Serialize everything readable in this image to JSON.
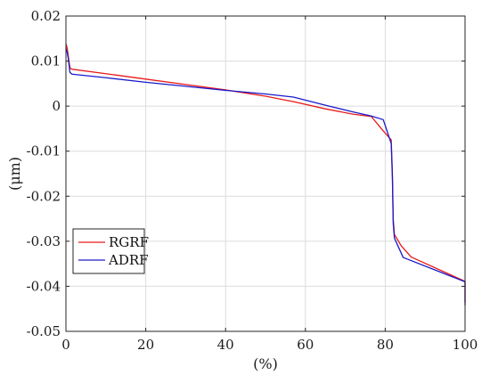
{
  "chart_data": {
    "type": "line",
    "xlabel": "(%)",
    "ylabel": "(μm)",
    "xlim": [
      0,
      100
    ],
    "ylim": [
      -0.05,
      0.02
    ],
    "xticks": [
      0,
      20,
      40,
      60,
      80,
      100
    ],
    "yticks": [
      0.02,
      0.01,
      0,
      -0.01,
      -0.02,
      -0.03,
      -0.04,
      -0.05
    ],
    "xtick_labels": [
      "0",
      "20",
      "40",
      "60",
      "80",
      "100"
    ],
    "ytick_labels": [
      "0.02",
      "0.01",
      "0",
      "-0.01",
      "-0.02",
      "-0.03",
      "-0.04",
      "-0.05"
    ],
    "grid": true,
    "legend_position": "lower-left",
    "series": [
      {
        "name": "RGRF",
        "color": "#e8191a",
        "x": [
          0,
          0.3,
          0.6,
          1,
          1.5,
          10,
          20,
          30,
          40,
          50,
          57,
          65,
          72,
          76.5,
          79.5,
          81.5,
          81.8,
          82,
          82.3,
          84,
          86.5,
          100,
          100
        ],
        "y": [
          0.0138,
          0.013,
          0.011,
          0.0085,
          0.0082,
          0.0072,
          0.006,
          0.0048,
          0.0036,
          0.0022,
          0.001,
          -0.0006,
          -0.0018,
          -0.0023,
          -0.0055,
          -0.0075,
          -0.015,
          -0.025,
          -0.0285,
          -0.031,
          -0.0335,
          -0.0389,
          -0.0435
        ]
      },
      {
        "name": "ADRF",
        "color": "#1a1acc",
        "x": [
          0,
          0.3,
          0.6,
          1,
          1.5,
          10,
          20,
          30,
          40,
          50,
          57,
          65,
          72,
          76.5,
          79.5,
          81.5,
          81.8,
          82,
          82.3,
          84.5,
          100,
          100
        ],
        "y": [
          0.0128,
          0.012,
          0.0105,
          0.0075,
          0.0071,
          0.0063,
          0.0053,
          0.0044,
          0.0035,
          0.0027,
          0.002,
          0.0002,
          -0.0013,
          -0.0022,
          -0.003,
          -0.0083,
          -0.016,
          -0.026,
          -0.0293,
          -0.0336,
          -0.039,
          -0.0442
        ]
      }
    ]
  }
}
